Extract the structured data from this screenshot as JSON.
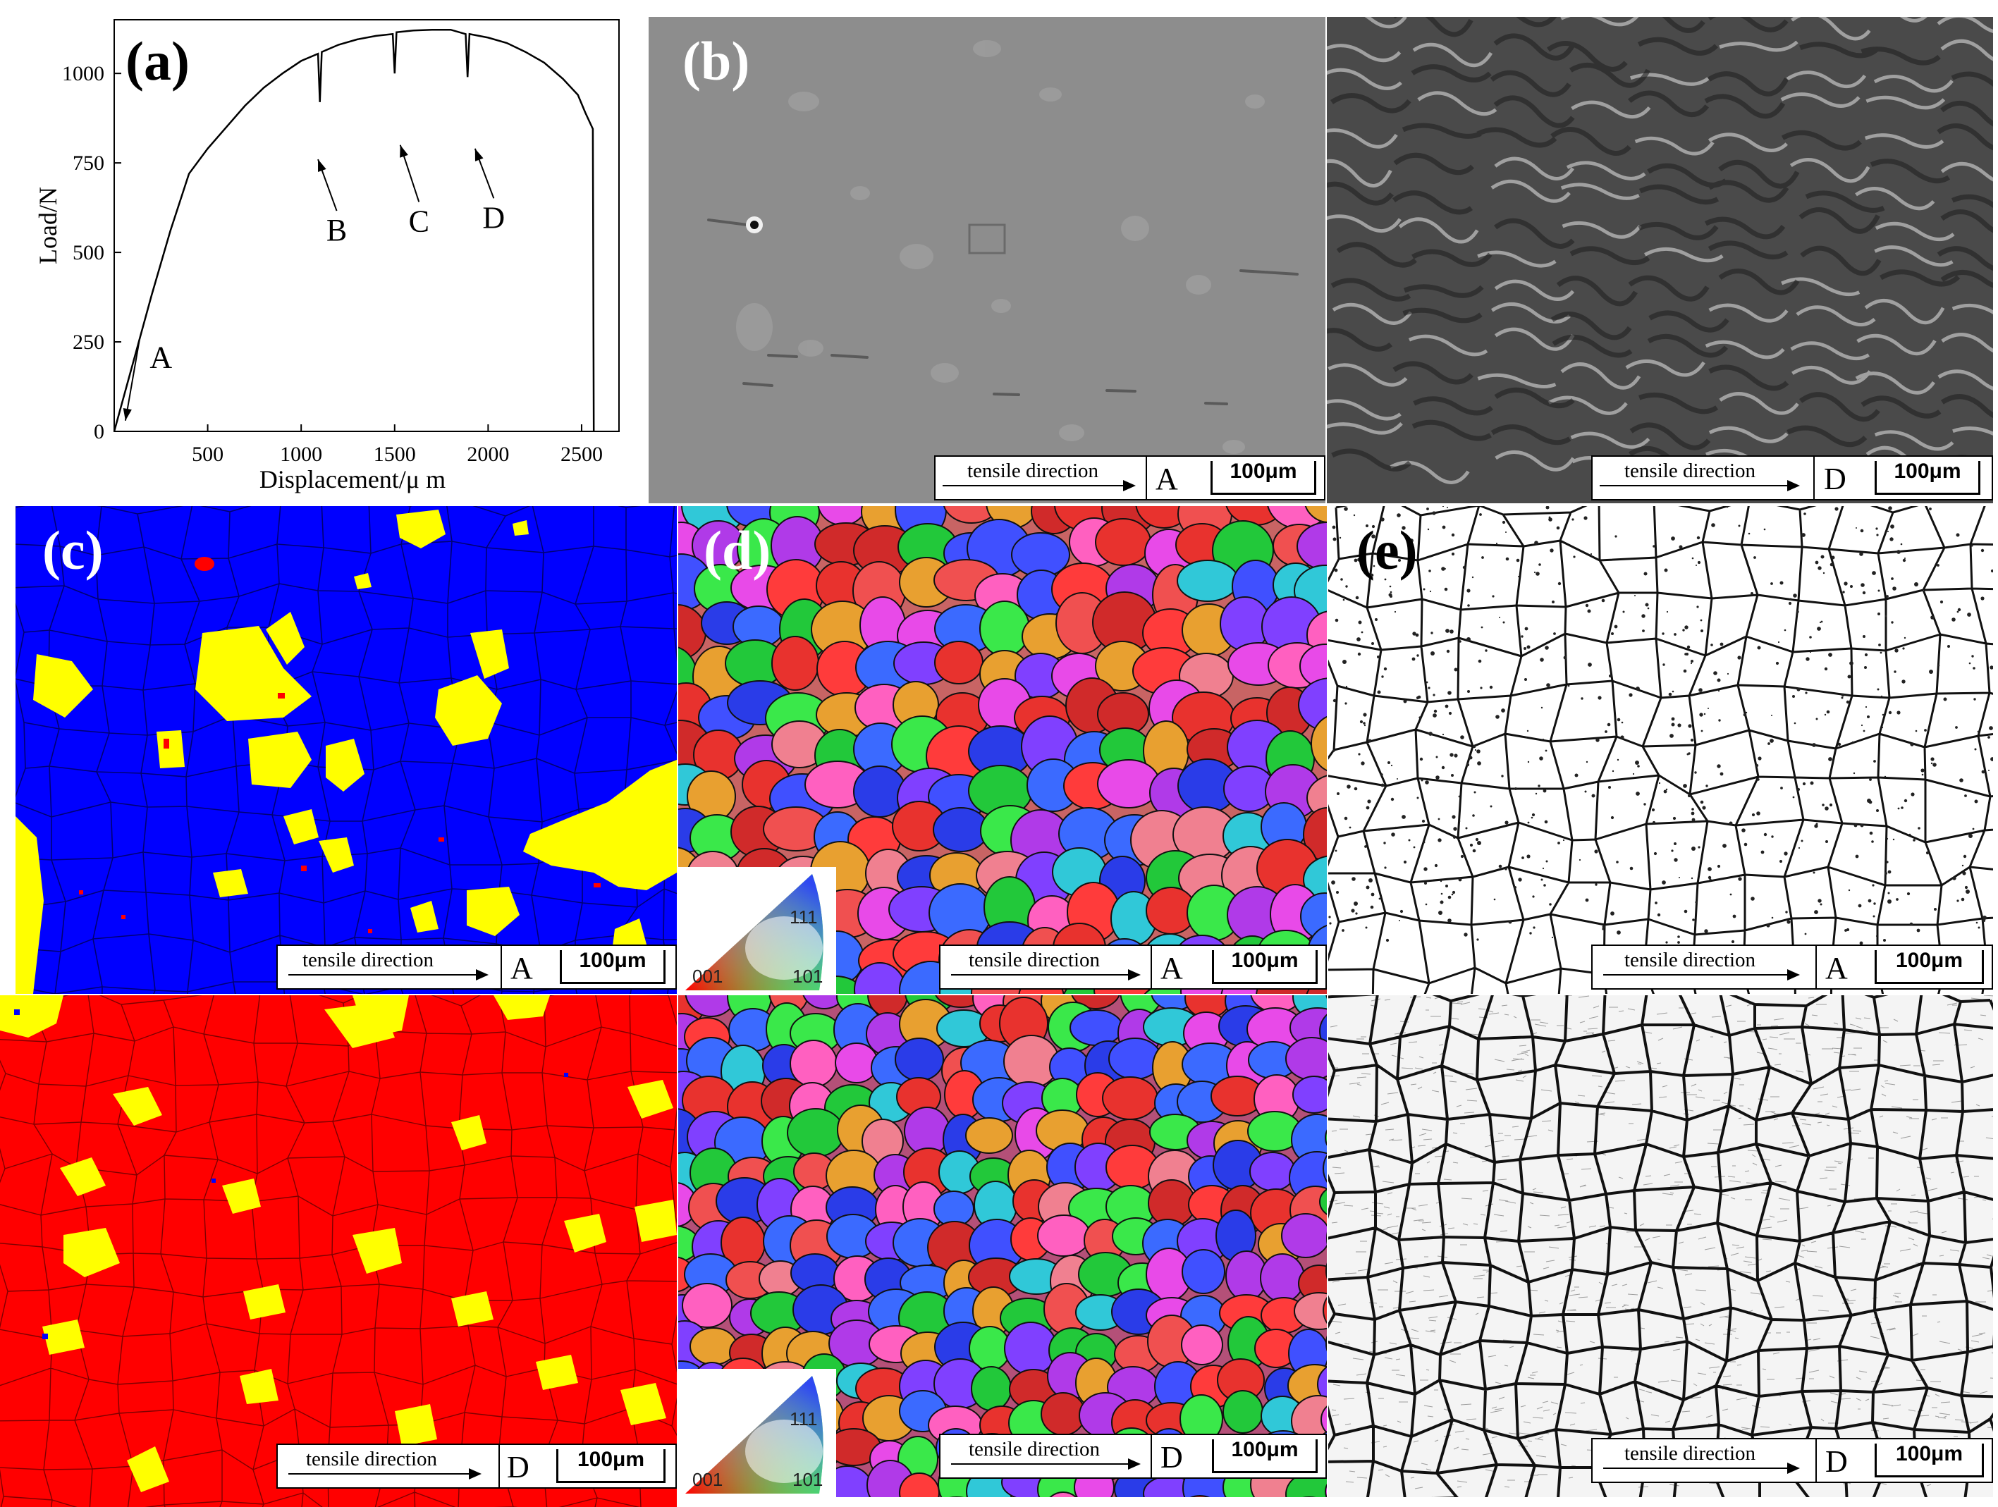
{
  "panels": {
    "a": {
      "label": "(a)"
    },
    "b": {
      "label": "(b)"
    },
    "c": {
      "label": "(c)"
    },
    "d": {
      "label": "(d)"
    },
    "e": {
      "label": "(e)"
    }
  },
  "caption": {
    "tensile_direction": "tensile direction",
    "scale_bar": "100μm",
    "state_A": "A",
    "state_D": "D"
  },
  "ipf_legend": {
    "c001": "001",
    "c101": "101",
    "c111": "111"
  },
  "colors": {
    "phase_blue": "#0000ff",
    "phase_red": "#ff0000",
    "phase_yellow": "#ffff00",
    "sem_gray": "#8a8a8a"
  },
  "chart_data": {
    "type": "line",
    "xlabel": "Displacement/μ m",
    "ylabel": "Load/N",
    "xlim": [
      0,
      2700
    ],
    "ylim": [
      0,
      1150
    ],
    "xticks": [
      500,
      1000,
      1500,
      2000,
      2500
    ],
    "yticks": [
      0,
      250,
      500,
      750,
      1000
    ],
    "series": [
      {
        "x": [
          0,
          100,
          200,
          300,
          400,
          500,
          600,
          700,
          800,
          900,
          1000,
          1090,
          1100,
          1110,
          1200,
          1300,
          1400,
          1490,
          1500,
          1510,
          1600,
          1700,
          1800,
          1880,
          1890,
          1900,
          2000,
          2100,
          2200,
          2300,
          2400,
          2480,
          2520,
          2560,
          2565
        ],
        "y": [
          0,
          190,
          380,
          560,
          720,
          790,
          850,
          910,
          960,
          1000,
          1035,
          1055,
          920,
          1060,
          1080,
          1095,
          1105,
          1110,
          1000,
          1115,
          1120,
          1122,
          1122,
          1110,
          990,
          1110,
          1100,
          1085,
          1060,
          1030,
          985,
          940,
          890,
          845,
          0
        ]
      }
    ],
    "annotations": [
      {
        "text": "A",
        "x": 250,
        "y": 210,
        "ax": 60,
        "ay": 30
      },
      {
        "text": "B",
        "x": 1190,
        "y": 565,
        "ax": 1090,
        "ay": 760
      },
      {
        "text": "C",
        "x": 1630,
        "y": 590,
        "ax": 1530,
        "ay": 800
      },
      {
        "text": "D",
        "x": 2030,
        "y": 600,
        "ax": 1930,
        "ay": 790
      }
    ]
  }
}
